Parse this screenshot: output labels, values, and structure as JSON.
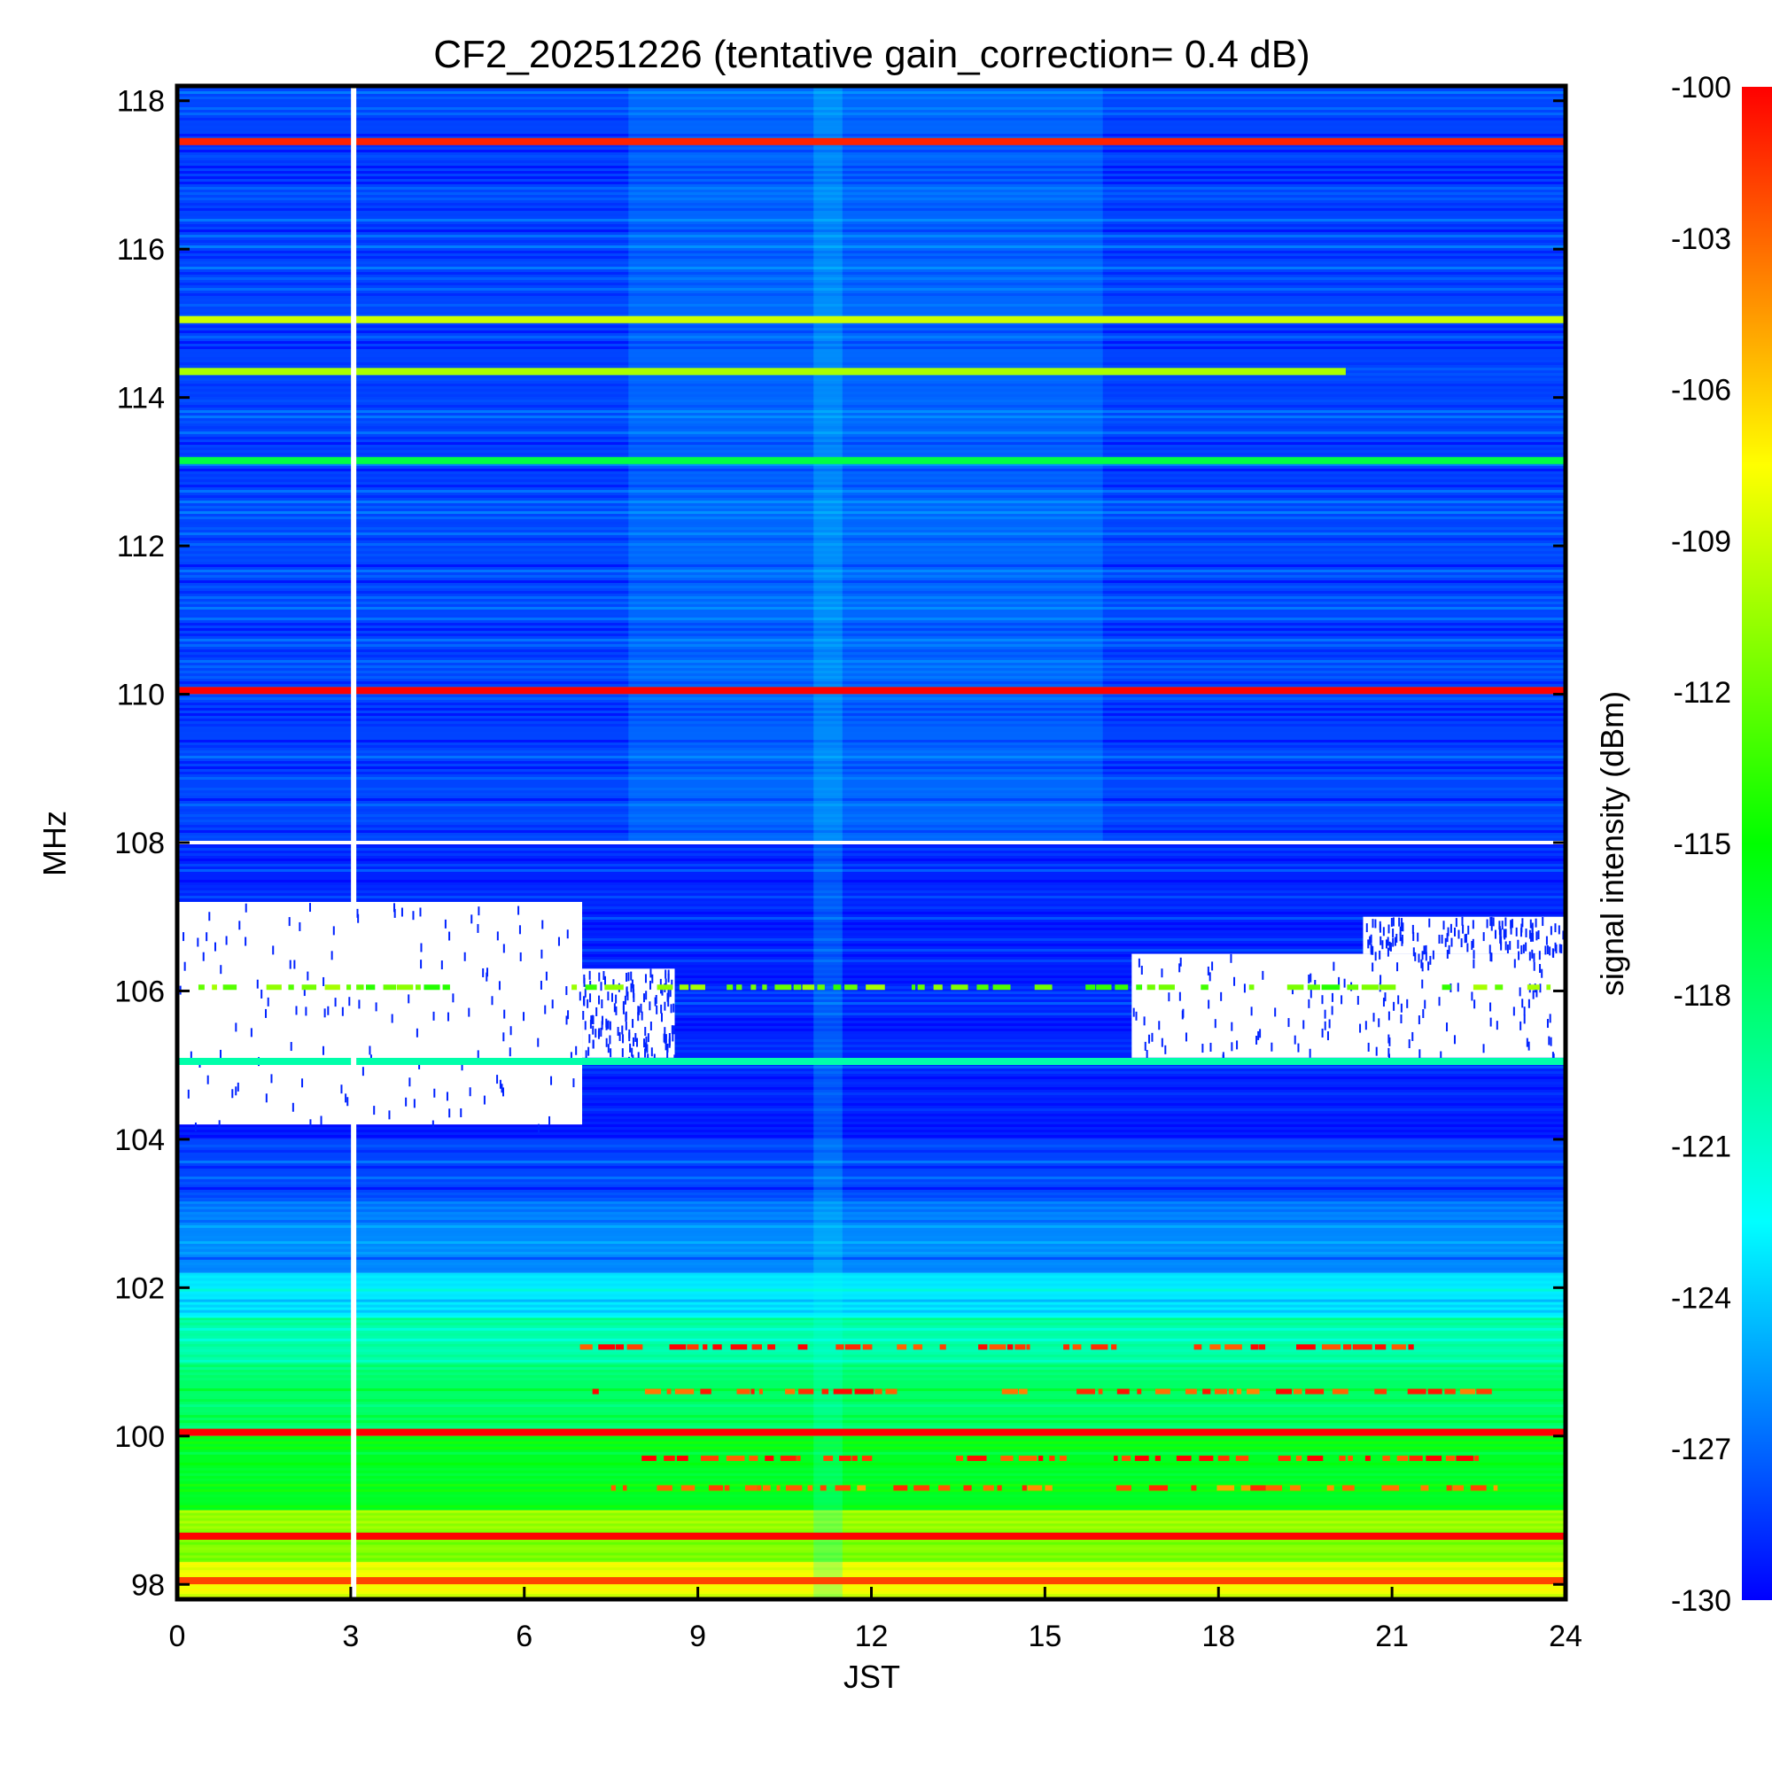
{
  "chart_data": {
    "type": "heatmap",
    "title": "CF2_20251226 (tentative gain_correction=  0.4 dB)",
    "xlabel": "JST",
    "ylabel": "MHz",
    "colorbar_label": "signal intensity (dBm)",
    "xlim": [
      0,
      24
    ],
    "ylim": [
      97.8,
      118.2
    ],
    "x_ticks": [
      "0",
      "3",
      "6",
      "9",
      "12",
      "15",
      "18",
      "21",
      "24"
    ],
    "y_ticks": [
      "98",
      "100",
      "102",
      "104",
      "106",
      "108",
      "110",
      "112",
      "114",
      "116",
      "118"
    ],
    "colorbar_range": [
      -130,
      -100
    ],
    "colorbar_ticks": [
      "-100",
      "-103",
      "-106",
      "-109",
      "-112",
      "-115",
      "-118",
      "-121",
      "-124",
      "-127",
      "-130"
    ],
    "colormap": [
      "#0000ff",
      "#0080ff",
      "#00ffff",
      "#00ff80",
      "#00ff00",
      "#80ff00",
      "#ffff00",
      "#ff8000",
      "#ff0000"
    ],
    "background_bands": [
      {
        "from": 97.8,
        "to": 98.3,
        "dbm": -108
      },
      {
        "from": 98.3,
        "to": 99.0,
        "dbm": -111
      },
      {
        "from": 99.0,
        "to": 100.0,
        "dbm": -116
      },
      {
        "from": 100.0,
        "to": 101.0,
        "dbm": -118
      },
      {
        "from": 101.0,
        "to": 101.6,
        "dbm": -120
      },
      {
        "from": 101.6,
        "to": 102.2,
        "dbm": -123
      },
      {
        "from": 102.2,
        "to": 103.2,
        "dbm": -126
      },
      {
        "from": 103.2,
        "to": 104.0,
        "dbm": -128
      },
      {
        "from": 104.0,
        "to": 108.0,
        "dbm": -129
      },
      {
        "from": 108.0,
        "to": 118.2,
        "dbm": -128
      }
    ],
    "strong_lines": [
      {
        "freq": 117.45,
        "dbm": -101,
        "x_from": 0,
        "x_to": 24
      },
      {
        "freq": 115.05,
        "dbm": -109,
        "x_from": 0,
        "x_to": 24
      },
      {
        "freq": 114.35,
        "dbm": -110,
        "x_from": 0,
        "x_to": 20.2
      },
      {
        "freq": 113.15,
        "dbm": -117,
        "x_from": 0,
        "x_to": 24
      },
      {
        "freq": 110.05,
        "dbm": -100,
        "x_from": 0,
        "x_to": 24
      },
      {
        "freq": 105.05,
        "dbm": -120,
        "x_from": 0,
        "x_to": 24
      },
      {
        "freq": 100.05,
        "dbm": -100,
        "x_from": 0,
        "x_to": 24
      },
      {
        "freq": 98.65,
        "dbm": -100,
        "x_from": 0,
        "x_to": 24
      },
      {
        "freq": 98.05,
        "dbm": -102,
        "x_from": 0,
        "x_to": 24
      }
    ],
    "intermittent_lines": [
      {
        "freq": 101.2,
        "dbm": -101,
        "x_from": 6.5,
        "x_to": 21.5
      },
      {
        "freq": 100.6,
        "dbm": -102,
        "x_from": 6.5,
        "x_to": 23
      },
      {
        "freq": 99.7,
        "dbm": -101,
        "x_from": 7.8,
        "x_to": 22.5
      },
      {
        "freq": 99.3,
        "dbm": -103,
        "x_from": 7.5,
        "x_to": 23.5
      },
      {
        "freq": 106.05,
        "dbm": -112,
        "x_from": 0,
        "x_to": 24
      }
    ],
    "saturated_regions": [
      {
        "x_from": 0,
        "x_to": 7.0,
        "f_from": 104.2,
        "f_to": 107.2
      },
      {
        "x_from": 7.0,
        "x_to": 8.6,
        "f_from": 105.1,
        "f_to": 106.3
      },
      {
        "x_from": 16.5,
        "x_to": 24,
        "f_from": 105.1,
        "f_to": 106.5
      },
      {
        "x_from": 20.5,
        "x_to": 24,
        "f_from": 106.5,
        "f_to": 107.0
      }
    ],
    "data_gaps": [
      {
        "x": 3.05,
        "f_from": 97.8,
        "f_to": 118.2
      },
      {
        "x_from": 0,
        "x_to": 24,
        "freq": 108.0
      }
    ]
  }
}
